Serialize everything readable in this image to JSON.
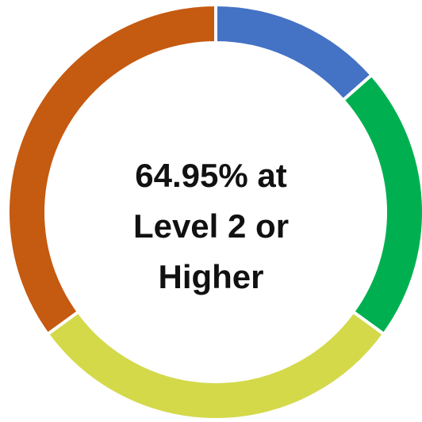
{
  "chart_data": {
    "type": "pie",
    "variant": "donut",
    "center_text": [
      "64.95% at",
      "Level 2 or",
      "Higher"
    ],
    "slices": [
      {
        "value": 13.5,
        "color": "#4472C4"
      },
      {
        "value": 21.5,
        "color": "#00B050"
      },
      {
        "value": 30.0,
        "color": "#D4D94A"
      },
      {
        "value": 35.0,
        "color": "#C55A11"
      }
    ],
    "legend": "none"
  }
}
